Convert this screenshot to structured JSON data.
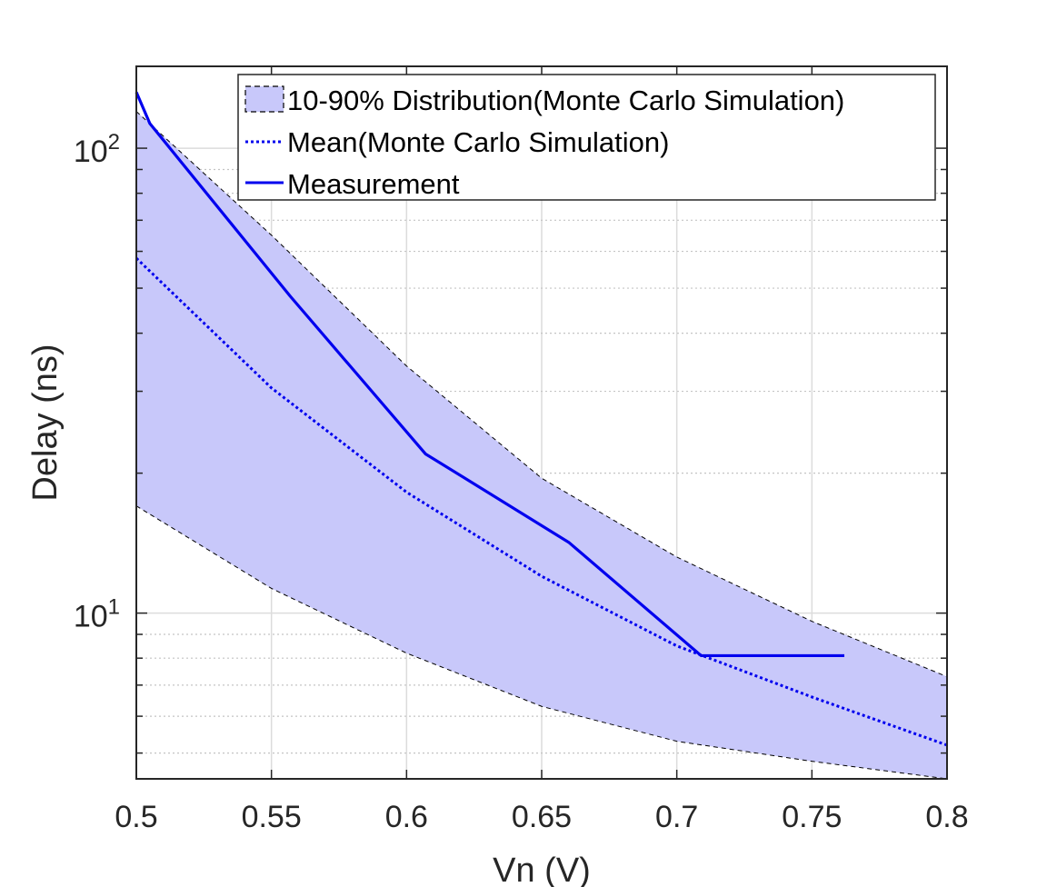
{
  "chart_data": {
    "type": "line",
    "title": "",
    "xlabel": "Vn (V)",
    "ylabel": "Delay (ns)",
    "xlim": [
      0.5,
      0.8
    ],
    "ylim": [
      4.4,
      150
    ],
    "yscale": "log",
    "grid": true,
    "legend_location": "top-right",
    "xticks": [
      0.5,
      0.55,
      0.6,
      0.65,
      0.7,
      0.75,
      0.8
    ],
    "xtick_labels": [
      "0.5",
      "0.55",
      "0.6",
      "0.65",
      "0.7",
      "0.75",
      "0.8"
    ],
    "yticks": [
      10,
      100
    ],
    "ytick_labels": [
      {
        "base": "10",
        "exp": "1"
      },
      {
        "base": "10",
        "exp": "2"
      }
    ],
    "series": [
      {
        "name": "10-90% Distribution(Monte Carlo Simulation)",
        "kind": "band",
        "color": "#c8c8fa",
        "edge_color": "#000000",
        "x": [
          0.5,
          0.55,
          0.6,
          0.65,
          0.7,
          0.75,
          0.8
        ],
        "lower": [
          17,
          11.3,
          8.2,
          6.3,
          5.3,
          4.8,
          4.4
        ],
        "upper": [
          120,
          65,
          34,
          19.5,
          13.2,
          9.6,
          7.3
        ]
      },
      {
        "name": "Mean(Monte Carlo Simulation)",
        "kind": "line",
        "style": "dotted",
        "color": "#0000ee",
        "x": [
          0.5,
          0.55,
          0.6,
          0.65,
          0.7,
          0.75,
          0.8
        ],
        "values": [
          58,
          30.5,
          18.2,
          12,
          8.5,
          6.6,
          5.2
        ]
      },
      {
        "name": "Measurement",
        "kind": "line",
        "style": "solid",
        "color": "#0000ee",
        "x": [
          0.5,
          0.505,
          0.557,
          0.607,
          0.66,
          0.709,
          0.762
        ],
        "values": [
          132,
          113,
          48,
          22,
          14.2,
          8.1,
          8.1
        ]
      }
    ]
  }
}
